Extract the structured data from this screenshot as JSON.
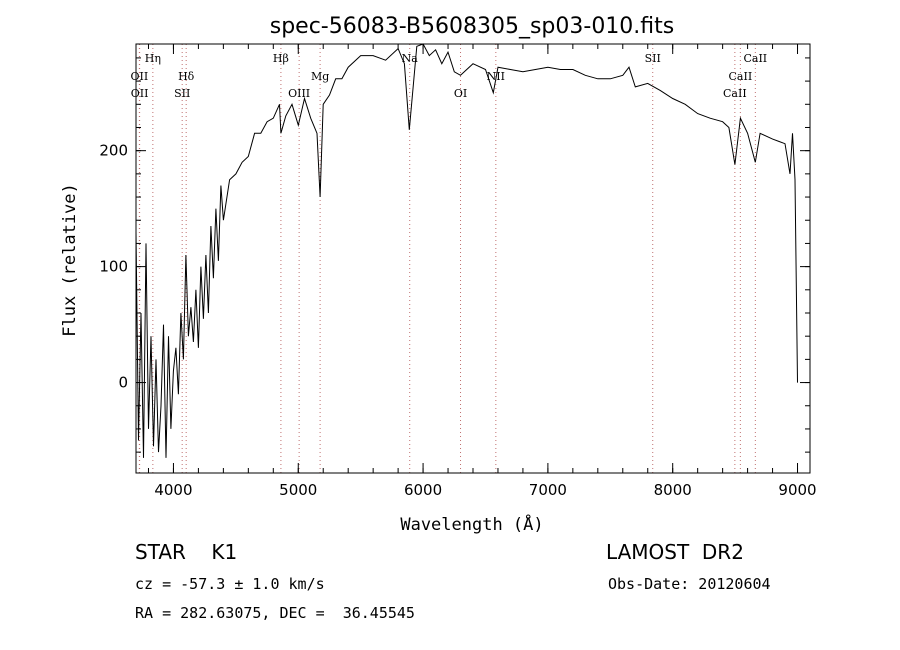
{
  "chart_data": {
    "type": "line",
    "title": "spec-56083-B5608305_sp03-010.fits",
    "xlabel": "Wavelength (Å)",
    "ylabel": "Flux (relative)",
    "xlim": [
      3700,
      9100
    ],
    "ylim": [
      -78,
      292
    ],
    "xticks": [
      4000,
      5000,
      6000,
      7000,
      8000,
      9000
    ],
    "yticks": [
      0,
      100,
      200
    ],
    "grid": false,
    "legend": "none",
    "series": [
      {
        "color": "#000000",
        "x": [
          3700,
          3720,
          3740,
          3760,
          3780,
          3800,
          3820,
          3840,
          3860,
          3880,
          3900,
          3920,
          3940,
          3960,
          3980,
          4000,
          4020,
          4040,
          4060,
          4080,
          4100,
          4120,
          4140,
          4160,
          4180,
          4200,
          4220,
          4240,
          4260,
          4280,
          4300,
          4320,
          4340,
          4360,
          4380,
          4400,
          4450,
          4500,
          4550,
          4600,
          4650,
          4700,
          4750,
          4800,
          4850,
          4861,
          4900,
          4950,
          5000,
          5050,
          5100,
          5150,
          5175,
          5200,
          5250,
          5300,
          5350,
          5400,
          5500,
          5600,
          5700,
          5800,
          5850,
          5890,
          5950,
          6000,
          6050,
          6100,
          6150,
          6200,
          6250,
          6300,
          6400,
          6500,
          6563,
          6600,
          6700,
          6800,
          6900,
          7000,
          7100,
          7200,
          7300,
          7400,
          7500,
          7600,
          7650,
          7700,
          7800,
          7900,
          8000,
          8100,
          8200,
          8300,
          8400,
          8450,
          8498,
          8542,
          8600,
          8662,
          8700,
          8800,
          8850,
          8900,
          8940,
          8960,
          8980,
          9000
        ],
        "y": [
          130,
          -50,
          60,
          -65,
          120,
          -40,
          40,
          -55,
          20,
          -60,
          -20,
          50,
          -65,
          40,
          -40,
          10,
          30,
          -10,
          60,
          20,
          110,
          40,
          65,
          35,
          80,
          30,
          100,
          55,
          110,
          60,
          135,
          90,
          150,
          105,
          170,
          140,
          175,
          180,
          190,
          195,
          215,
          215,
          225,
          228,
          240,
          215,
          230,
          240,
          222,
          245,
          228,
          215,
          160,
          240,
          248,
          262,
          262,
          272,
          282,
          282,
          278,
          288,
          275,
          218,
          290,
          292,
          282,
          287,
          275,
          285,
          268,
          265,
          275,
          270,
          250,
          272,
          270,
          268,
          270,
          272,
          270,
          270,
          265,
          262,
          262,
          265,
          272,
          255,
          258,
          252,
          245,
          240,
          232,
          228,
          225,
          220,
          188,
          228,
          215,
          190,
          215,
          210,
          208,
          206,
          180,
          215,
          175,
          0
        ]
      }
    ],
    "line_markers": [
      {
        "label": "Hη",
        "x": 3835,
        "row": 0
      },
      {
        "label": "OII",
        "x": 3727,
        "row": 1
      },
      {
        "label": "OII",
        "x": 3729,
        "row": 2
      },
      {
        "label": "Hδ",
        "x": 4102,
        "row": 1
      },
      {
        "label": "SII",
        "x": 4070,
        "row": 2
      },
      {
        "label": "Hβ",
        "x": 4861,
        "row": 0
      },
      {
        "label": "Mg",
        "x": 5175,
        "row": 1
      },
      {
        "label": "OIII",
        "x": 5007,
        "row": 2
      },
      {
        "label": "Na",
        "x": 5893,
        "row": 0
      },
      {
        "label": "OI",
        "x": 6300,
        "row": 2
      },
      {
        "label": "NII",
        "x": 6583,
        "row": 1
      },
      {
        "label": "SII",
        "x": 7840,
        "row": 0
      },
      {
        "label": "CaII",
        "x": 8662,
        "row": 0
      },
      {
        "label": "CaII",
        "x": 8542,
        "row": 1
      },
      {
        "label": "CaII",
        "x": 8498,
        "row": 2
      }
    ]
  },
  "info": {
    "class_line": "STAR    K1",
    "survey": "LAMOST  DR2",
    "cz": "cz = -57.3 ± 1.0 km/s",
    "obs_date": "Obs-Date: 20120604",
    "coords": "RA = 282.63075, DEC =  36.45545"
  }
}
